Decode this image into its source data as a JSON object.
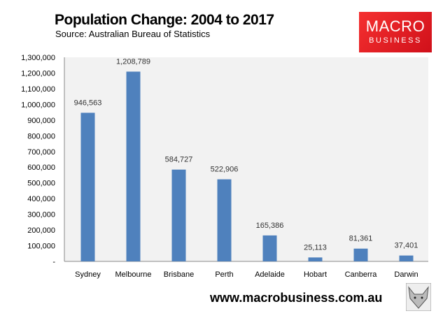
{
  "header": {
    "title": "Population Change: 2004 to 2017",
    "subtitle": "Source: Australian Bureau of Statistics",
    "logo_line1": "MACRO",
    "logo_line2": "BUSINESS"
  },
  "footer": {
    "url": "www.macrobusiness.com.au"
  },
  "colors": {
    "bar": "#4f81bd",
    "plot_bg": "#f2f2f2",
    "logo": "#e8202a"
  },
  "chart_data": {
    "type": "bar",
    "title": "Population Change: 2004 to 2017",
    "subtitle": "Source: Australian Bureau of Statistics",
    "categories": [
      "Sydney",
      "Melbourne",
      "Brisbane",
      "Perth",
      "Adelaide",
      "Hobart",
      "Canberra",
      "Darwin"
    ],
    "values": [
      946563,
      1208789,
      584727,
      522906,
      165386,
      25113,
      81361,
      37401
    ],
    "data_labels": [
      "946,563",
      "1,208,789",
      "584,727",
      "522,906",
      "165,386",
      "25,113",
      "81,361",
      "37,401"
    ],
    "ylim": [
      0,
      1300000
    ],
    "yticks": [
      0,
      100000,
      200000,
      300000,
      400000,
      500000,
      600000,
      700000,
      800000,
      900000,
      1000000,
      1100000,
      1200000,
      1300000
    ],
    "ytick_labels": [
      "-",
      "100,000",
      "200,000",
      "300,000",
      "400,000",
      "500,000",
      "600,000",
      "700,000",
      "800,000",
      "900,000",
      "1,000,000",
      "1,100,000",
      "1,200,000",
      "1,300,000"
    ],
    "grid": false,
    "legend": "none",
    "xlabel": "",
    "ylabel": ""
  }
}
